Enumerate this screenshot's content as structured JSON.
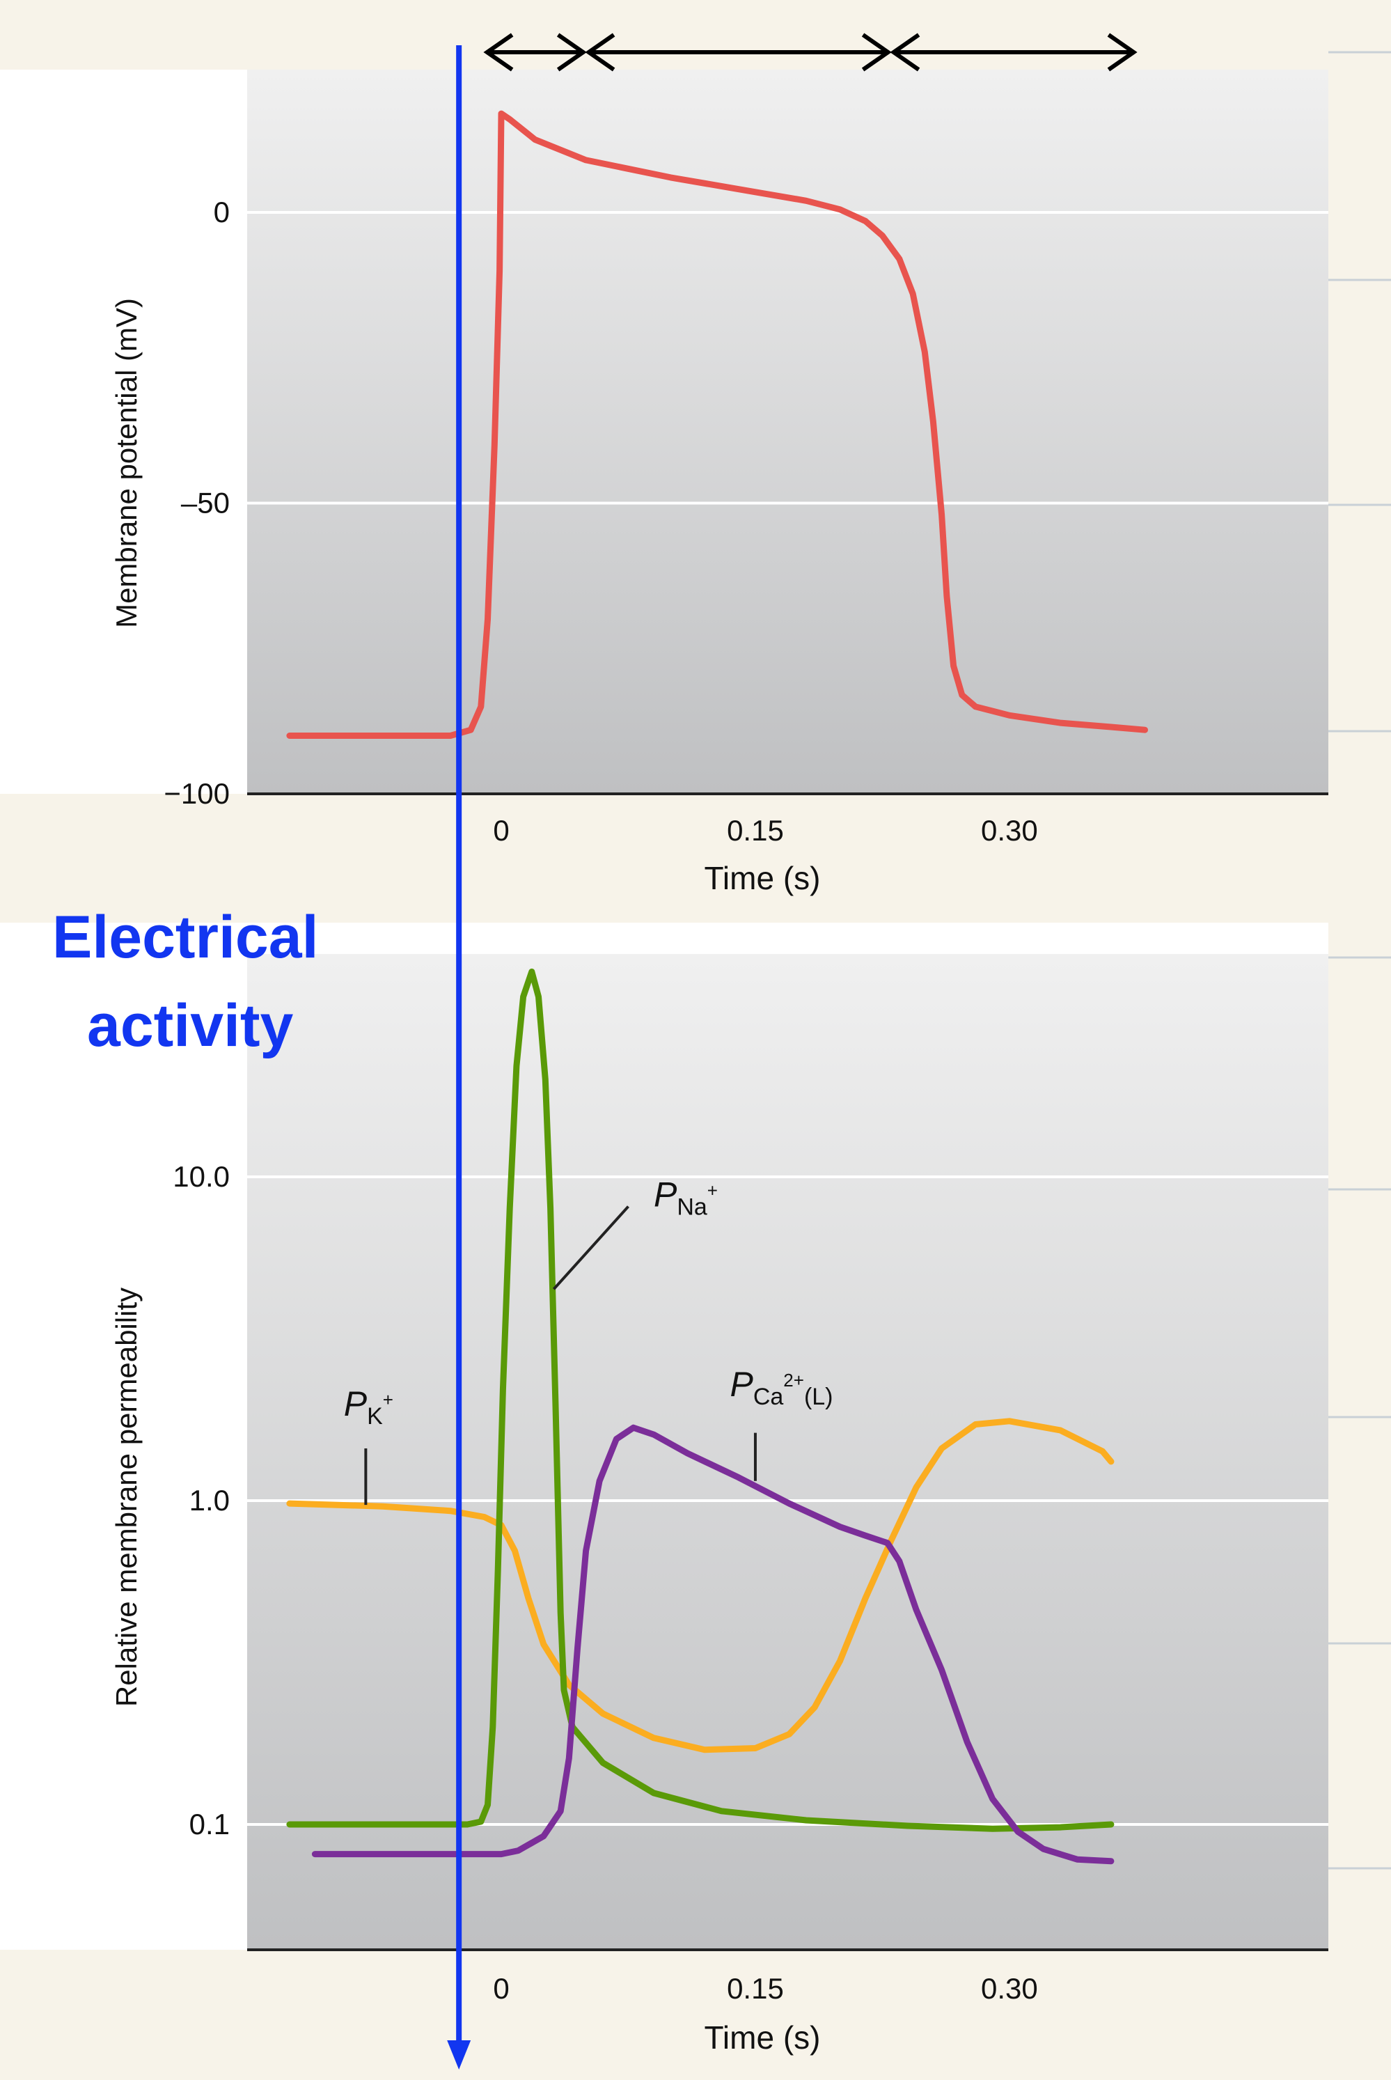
{
  "annotation": {
    "label_line1": "Electrical",
    "label_line2": "activity",
    "marker_time": -0.025
  },
  "colors": {
    "membrane_potential": "#e8544e",
    "pK": "#fbad20",
    "pNa": "#5a9a08",
    "pCa": "#7b2e99",
    "annotation": "#1236f0",
    "plot_bg_top": "#f0f0f0",
    "plot_bg_bottom": "#bfc0c2",
    "page_bg": "#f7f3e9"
  },
  "chart_data": [
    {
      "type": "line",
      "title": "",
      "xlabel": "Time (s)",
      "ylabel": "Membrane potential (mV)",
      "xlim": [
        -0.13,
        0.5
      ],
      "ylim": [
        -100,
        20
      ],
      "xticks": [
        0,
        0.15,
        0.3
      ],
      "xtick_labels": [
        "0",
        "0.15",
        "0.30"
      ],
      "yticks": [
        0,
        -50,
        -100
      ],
      "ytick_labels": [
        "0",
        "–50",
        "−100"
      ],
      "grid": "horizontal",
      "phase_arrows": [
        {
          "from": -0.01,
          "to": 0.05
        },
        {
          "from": 0.05,
          "to": 0.23
        },
        {
          "from": 0.23,
          "to": 0.375
        }
      ],
      "series": [
        {
          "color_key": "membrane_potential",
          "points": [
            [
              -0.125,
              -90
            ],
            [
              -0.03,
              -90
            ],
            [
              -0.018,
              -89
            ],
            [
              -0.012,
              -85
            ],
            [
              -0.008,
              -70
            ],
            [
              -0.004,
              -40
            ],
            [
              -0.001,
              -10
            ],
            [
              0.0,
              17
            ],
            [
              0.005,
              16
            ],
            [
              0.02,
              12.5
            ],
            [
              0.05,
              9
            ],
            [
              0.1,
              6
            ],
            [
              0.15,
              3.5
            ],
            [
              0.18,
              2
            ],
            [
              0.2,
              0.5
            ],
            [
              0.215,
              -1.5
            ],
            [
              0.225,
              -4
            ],
            [
              0.235,
              -8
            ],
            [
              0.243,
              -14
            ],
            [
              0.25,
              -24
            ],
            [
              0.255,
              -36
            ],
            [
              0.26,
              -52
            ],
            [
              0.263,
              -66
            ],
            [
              0.267,
              -78
            ],
            [
              0.272,
              -83
            ],
            [
              0.28,
              -85
            ],
            [
              0.3,
              -86.5
            ],
            [
              0.33,
              -87.8
            ],
            [
              0.36,
              -88.5
            ],
            [
              0.38,
              -89
            ]
          ]
        }
      ]
    },
    {
      "type": "line",
      "title": "",
      "xlabel": "Time (s)",
      "ylabel": "Relative membrane permeability",
      "yscale": "log",
      "xlim": [
        -0.13,
        0.5
      ],
      "ylim": [
        0.04,
        100
      ],
      "xticks": [
        0,
        0.15,
        0.3
      ],
      "xtick_labels": [
        "0",
        "0.15",
        "0.30"
      ],
      "yticks": [
        0.1,
        1.0,
        10.0
      ],
      "ytick_labels": [
        "0.1",
        "1.0",
        "10.0"
      ],
      "grid": "horizontal",
      "series": [
        {
          "name_main": "P",
          "name_sub": "K",
          "name_sup": "+",
          "label_time": -0.093,
          "label_value": 1.83,
          "leader_from": [
            -0.08,
            0.97
          ],
          "leader_to": [
            -0.08,
            1.45
          ],
          "color_key": "pK",
          "points": [
            [
              -0.125,
              0.98
            ],
            [
              -0.07,
              0.96
            ],
            [
              -0.03,
              0.93
            ],
            [
              -0.01,
              0.89
            ],
            [
              0.0,
              0.84
            ],
            [
              0.008,
              0.7
            ],
            [
              0.016,
              0.5
            ],
            [
              0.025,
              0.36
            ],
            [
              0.04,
              0.27
            ],
            [
              0.06,
              0.22
            ],
            [
              0.09,
              0.185
            ],
            [
              0.12,
              0.17
            ],
            [
              0.15,
              0.172
            ],
            [
              0.17,
              0.19
            ],
            [
              0.185,
              0.23
            ],
            [
              0.2,
              0.32
            ],
            [
              0.215,
              0.5
            ],
            [
              0.23,
              0.75
            ],
            [
              0.245,
              1.1
            ],
            [
              0.26,
              1.45
            ],
            [
              0.28,
              1.72
            ],
            [
              0.3,
              1.76
            ],
            [
              0.33,
              1.65
            ],
            [
              0.355,
              1.42
            ],
            [
              0.36,
              1.32
            ]
          ]
        },
        {
          "name_main": "P",
          "name_sub": "Na",
          "name_sup": "+",
          "label_time": 0.09,
          "label_value": 8.1,
          "leader_from": [
            0.031,
            4.5
          ],
          "leader_to": [
            0.075,
            8.1
          ],
          "color_key": "pNa",
          "points": [
            [
              -0.125,
              0.1
            ],
            [
              -0.02,
              0.1
            ],
            [
              -0.012,
              0.102
            ],
            [
              -0.008,
              0.115
            ],
            [
              -0.005,
              0.2
            ],
            [
              -0.002,
              0.6
            ],
            [
              0.001,
              2.2
            ],
            [
              0.005,
              8
            ],
            [
              0.009,
              22
            ],
            [
              0.013,
              36
            ],
            [
              0.018,
              43
            ],
            [
              0.022,
              36
            ],
            [
              0.026,
              20
            ],
            [
              0.029,
              8
            ],
            [
              0.032,
              2
            ],
            [
              0.035,
              0.45
            ],
            [
              0.037,
              0.26
            ],
            [
              0.042,
              0.2
            ],
            [
              0.06,
              0.155
            ],
            [
              0.09,
              0.125
            ],
            [
              0.13,
              0.11
            ],
            [
              0.18,
              0.103
            ],
            [
              0.24,
              0.099
            ],
            [
              0.29,
              0.097
            ],
            [
              0.33,
              0.098
            ],
            [
              0.36,
              0.1
            ]
          ]
        },
        {
          "name_main": "P",
          "name_sub": "Ca",
          "name_sup": "2+",
          "name_post": "(L)",
          "label_time": 0.135,
          "label_value": 2.1,
          "leader_from": [
            0.15,
            1.15
          ],
          "leader_to": [
            0.15,
            1.62
          ],
          "color_key": "pCa",
          "points": [
            [
              -0.11,
              0.081
            ],
            [
              -0.03,
              0.081
            ],
            [
              0.0,
              0.081
            ],
            [
              0.01,
              0.083
            ],
            [
              0.025,
              0.092
            ],
            [
              0.035,
              0.11
            ],
            [
              0.04,
              0.16
            ],
            [
              0.045,
              0.35
            ],
            [
              0.05,
              0.7
            ],
            [
              0.058,
              1.15
            ],
            [
              0.068,
              1.55
            ],
            [
              0.078,
              1.68
            ],
            [
              0.09,
              1.6
            ],
            [
              0.11,
              1.4
            ],
            [
              0.14,
              1.18
            ],
            [
              0.17,
              0.98
            ],
            [
              0.2,
              0.83
            ],
            [
              0.215,
              0.78
            ],
            [
              0.228,
              0.74
            ],
            [
              0.235,
              0.65
            ],
            [
              0.245,
              0.46
            ],
            [
              0.26,
              0.3
            ],
            [
              0.275,
              0.18
            ],
            [
              0.29,
              0.12
            ],
            [
              0.305,
              0.095
            ],
            [
              0.32,
              0.084
            ],
            [
              0.34,
              0.078
            ],
            [
              0.36,
              0.077
            ]
          ]
        }
      ]
    }
  ]
}
